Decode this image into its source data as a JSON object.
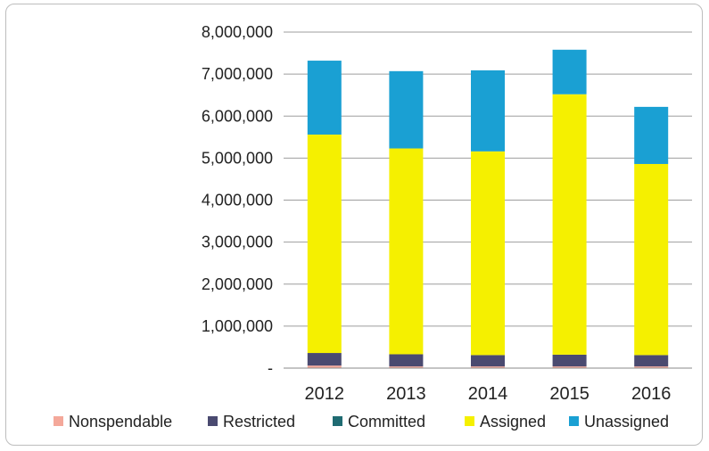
{
  "chart_data": {
    "type": "bar",
    "stacked": true,
    "categories": [
      "2012",
      "2013",
      "2014",
      "2015",
      "2016"
    ],
    "series": [
      {
        "name": "Nonspendable",
        "color": "#f4a89a",
        "values": [
          60000,
          40000,
          40000,
          40000,
          40000
        ]
      },
      {
        "name": "Restricted",
        "color": "#4a4a70",
        "values": [
          300000,
          290000,
          270000,
          280000,
          270000
        ]
      },
      {
        "name": "Committed",
        "color": "#1f6b72",
        "values": [
          0,
          0,
          0,
          0,
          0
        ]
      },
      {
        "name": "Assigned",
        "color": "#f5f000",
        "values": [
          5200000,
          4900000,
          4850000,
          6200000,
          4550000
        ]
      },
      {
        "name": "Unassigned",
        "color": "#1aa0d3",
        "values": [
          1760000,
          1840000,
          1930000,
          1060000,
          1360000
        ]
      }
    ],
    "yticks": [
      "-",
      "1,000,000",
      "2,000,000",
      "3,000,000",
      "4,000,000",
      "5,000,000",
      "6,000,000",
      "7,000,000",
      "8,000,000"
    ],
    "ylim": [
      0,
      8000000
    ],
    "grid": true,
    "legend": "bottom"
  }
}
